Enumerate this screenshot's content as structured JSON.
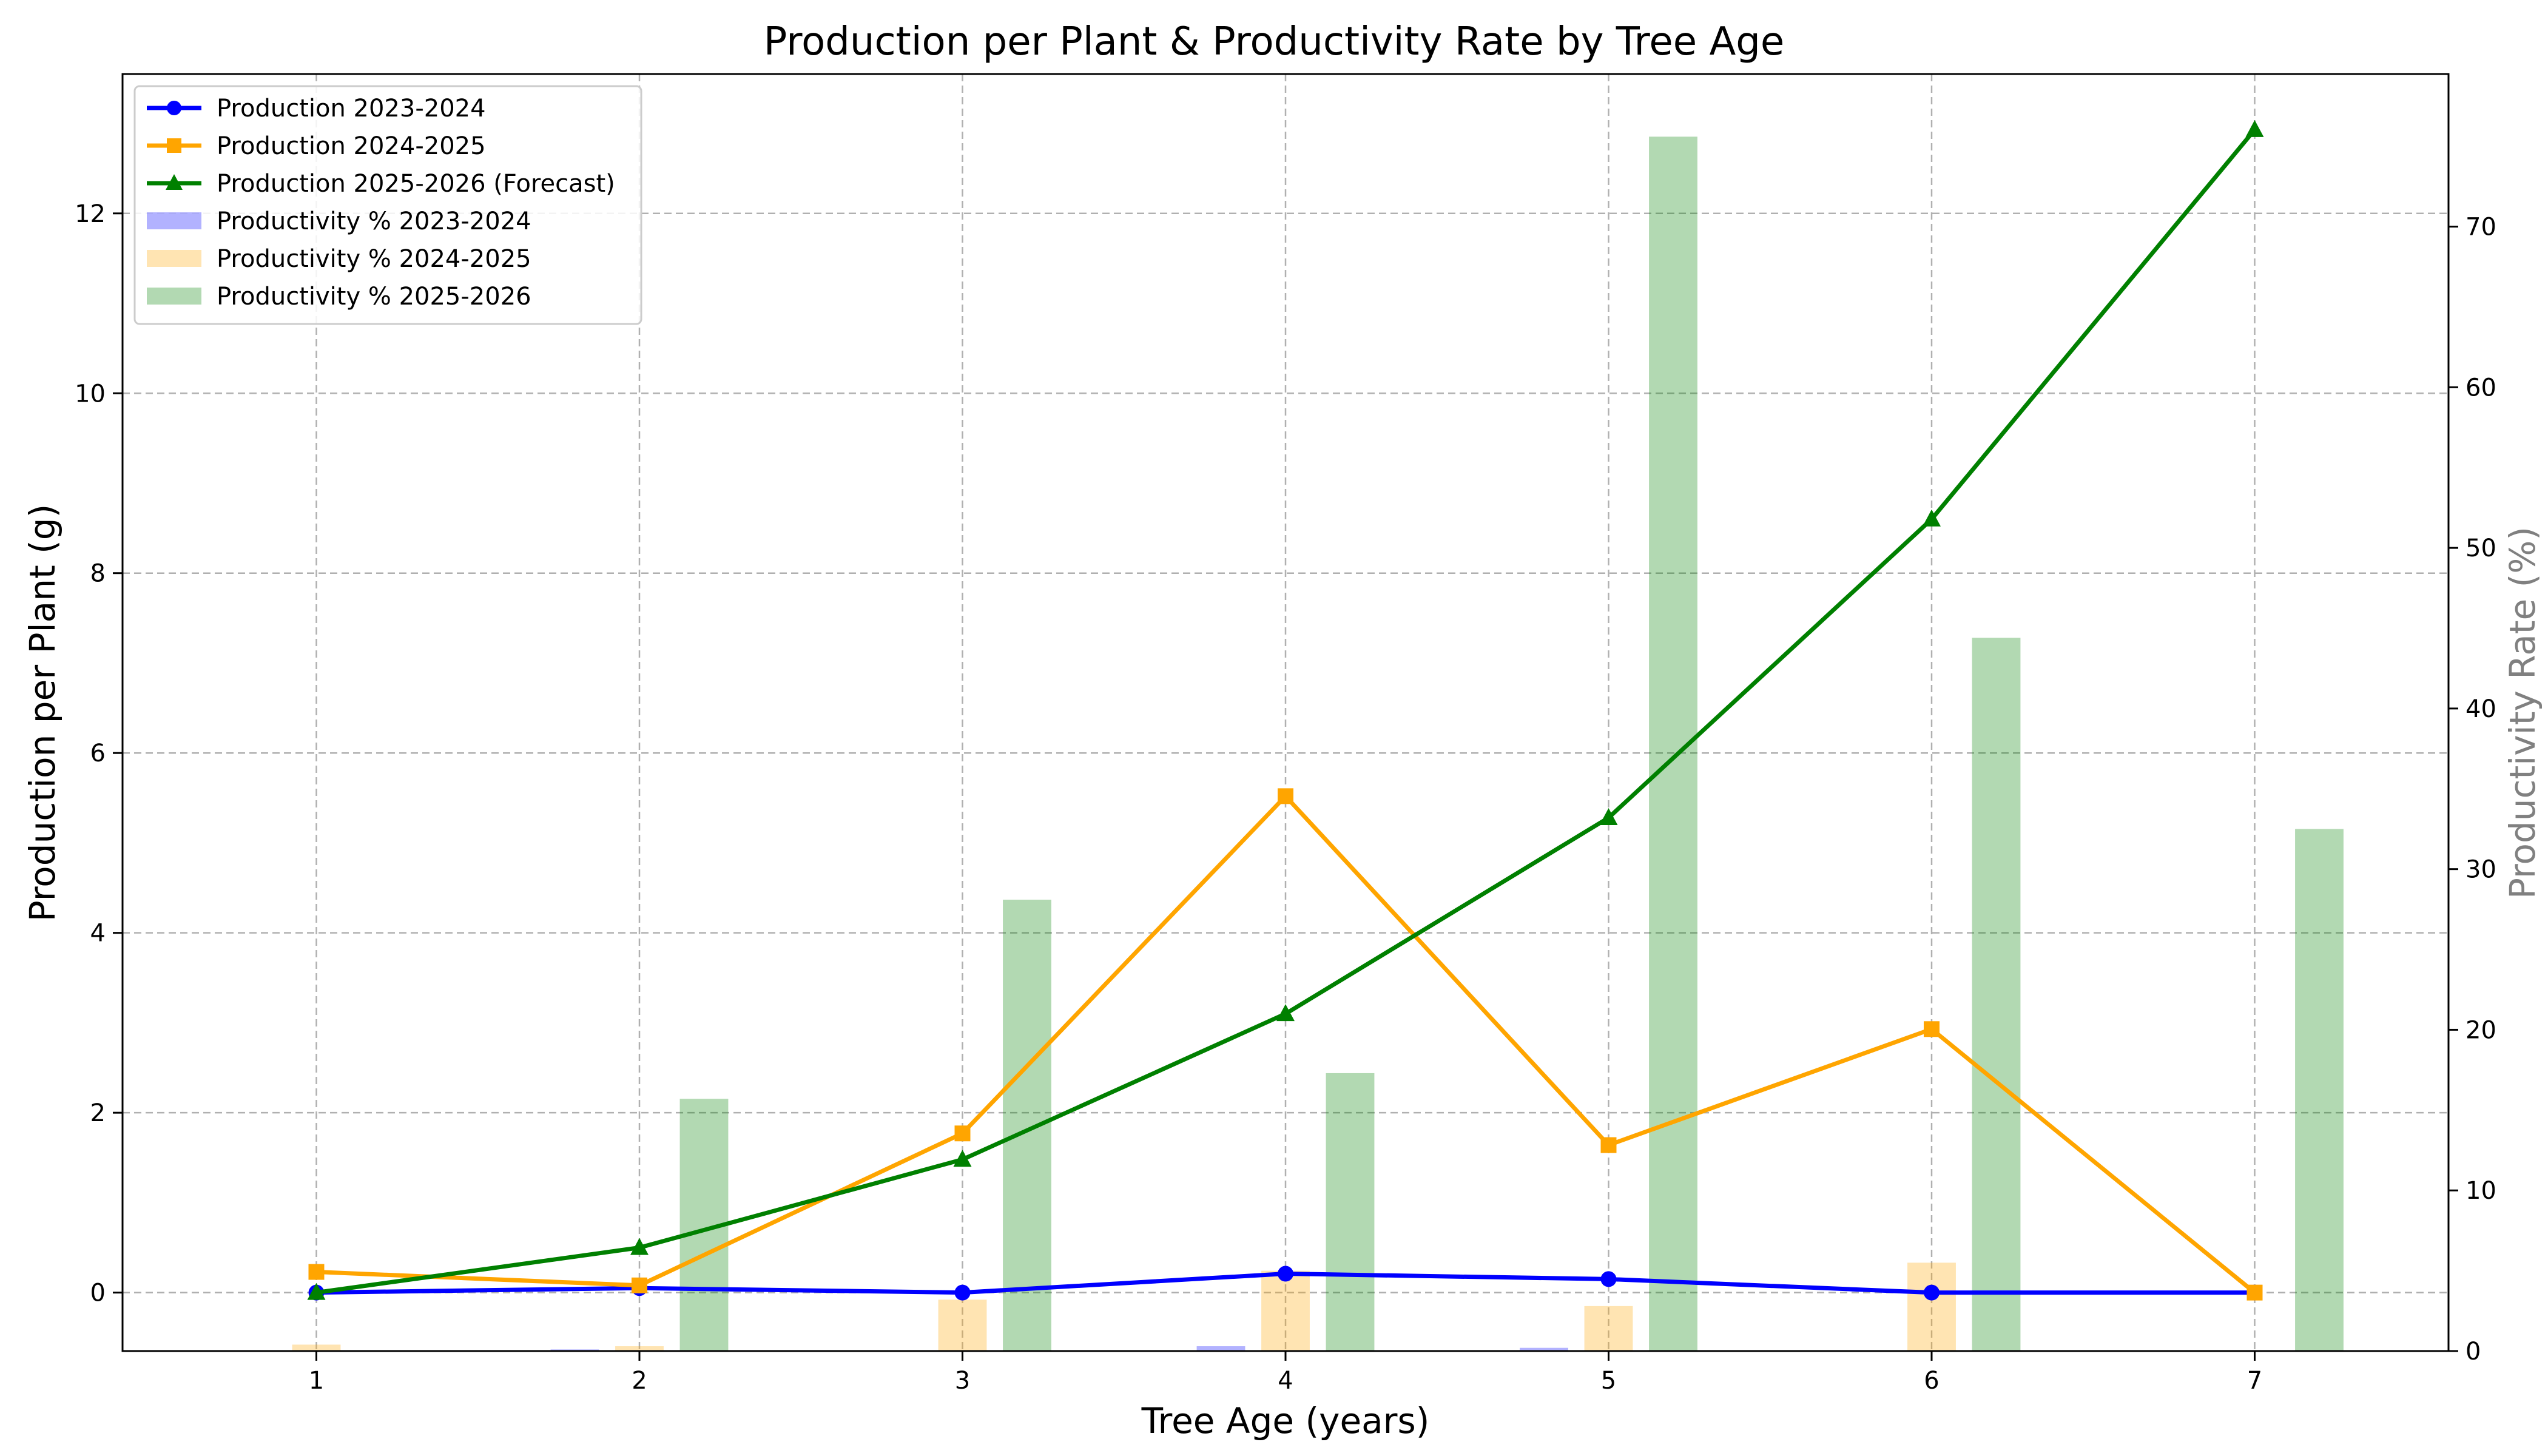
{
  "chart_data": {
    "type": "line",
    "title": "Production per Plant & Productivity Rate by Tree Age",
    "xlabel": "Tree Age (years)",
    "ylabel": "Production per Plant (g)",
    "ylabel_right": "Productivity Rate (%)",
    "x": [
      1,
      2,
      3,
      4,
      5,
      6,
      7
    ],
    "xlim": [
      0.4,
      7.6
    ],
    "ylim": [
      -0.65,
      13.55
    ],
    "ylim_right": [
      0,
      79.5
    ],
    "yticks": [
      0,
      2,
      4,
      6,
      8,
      10,
      12
    ],
    "yticks_right": [
      0,
      10,
      20,
      30,
      40,
      50,
      60,
      70
    ],
    "grid": true,
    "legend_position": "top-left",
    "line_series": [
      {
        "name": "Production 2023-2024",
        "values": [
          0.0,
          0.05,
          0.0,
          0.21,
          0.15,
          0.0,
          0.0
        ],
        "color": "#0000ff",
        "marker": "circle"
      },
      {
        "name": "Production 2024-2025",
        "values": [
          0.23,
          0.08,
          1.77,
          5.52,
          1.64,
          2.93,
          0.0
        ],
        "color": "#ffa500",
        "marker": "square"
      },
      {
        "name": "Production 2025-2026 (Forecast)",
        "values": [
          0.0,
          0.5,
          1.48,
          3.1,
          5.28,
          8.6,
          12.93
        ],
        "color": "#008000",
        "marker": "triangle"
      }
    ],
    "bar_series": [
      {
        "name": "Productivity % 2023-2024",
        "values": [
          0.0,
          0.1,
          0.0,
          0.3,
          0.2,
          0.0,
          0.0
        ],
        "color": "#0000ff",
        "opacity": 0.3,
        "offset": -0.2
      },
      {
        "name": "Productivity % 2024-2025",
        "values": [
          0.4,
          0.3,
          3.2,
          5.0,
          2.8,
          5.5,
          0.0
        ],
        "color": "#ffa500",
        "opacity": 0.3,
        "offset": 0.0
      },
      {
        "name": "Productivity % 2025-2026",
        "values": [
          0.0,
          15.7,
          28.1,
          17.3,
          75.6,
          44.4,
          32.5
        ],
        "color": "#008000",
        "opacity": 0.3,
        "offset": 0.2
      }
    ]
  }
}
